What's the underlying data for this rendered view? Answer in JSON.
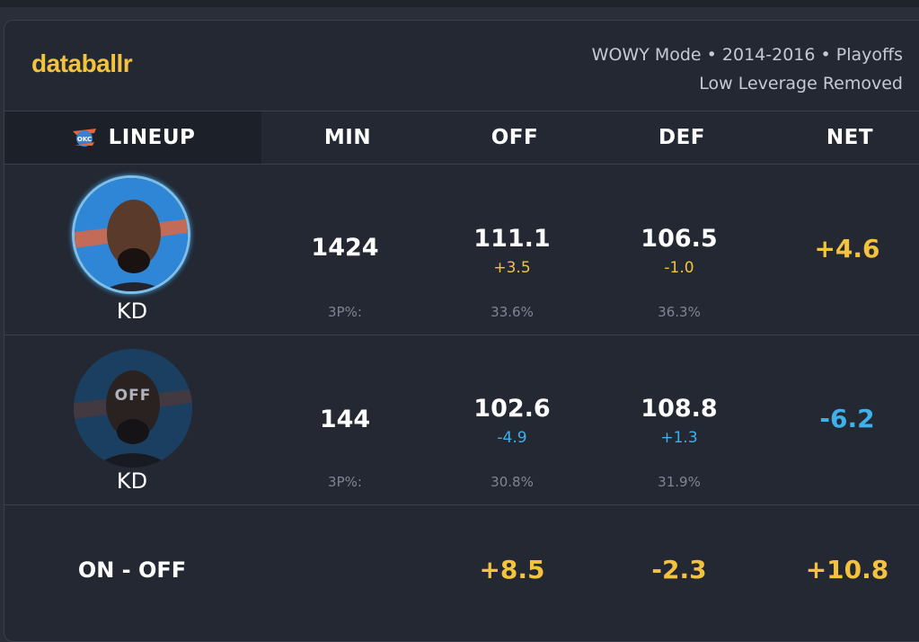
{
  "brand": {
    "name": "databallr",
    "accent": "#f4c33d",
    "negative": "#3eb1ec"
  },
  "meta": {
    "line1": "WOWY Mode • 2014-2016 • Playoffs",
    "line2": "Low Leverage Removed"
  },
  "header": {
    "lineup": "LINEUP",
    "team_logo": "okc-logo-icon",
    "min": "MIN",
    "off": "OFF",
    "def": "DEF",
    "net": "NET"
  },
  "rows": [
    {
      "player": "KD",
      "state": "on",
      "min": "1424",
      "three_label": "3P%:",
      "off": {
        "value": "111.1",
        "delta": "+3.5",
        "three": "33.6%"
      },
      "def": {
        "value": "106.5",
        "delta": "-1.0",
        "three": "36.3%"
      },
      "net": "+4.6"
    },
    {
      "player": "KD",
      "state": "off",
      "badge": "OFF",
      "min": "144",
      "three_label": "3P%:",
      "off": {
        "value": "102.6",
        "delta": "-4.9",
        "three": "30.8%"
      },
      "def": {
        "value": "108.8",
        "delta": "+1.3",
        "three": "31.9%"
      },
      "net": "-6.2"
    }
  ],
  "summary": {
    "label": "ON - OFF",
    "off": "+8.5",
    "def": "-2.3",
    "net": "+10.8"
  }
}
